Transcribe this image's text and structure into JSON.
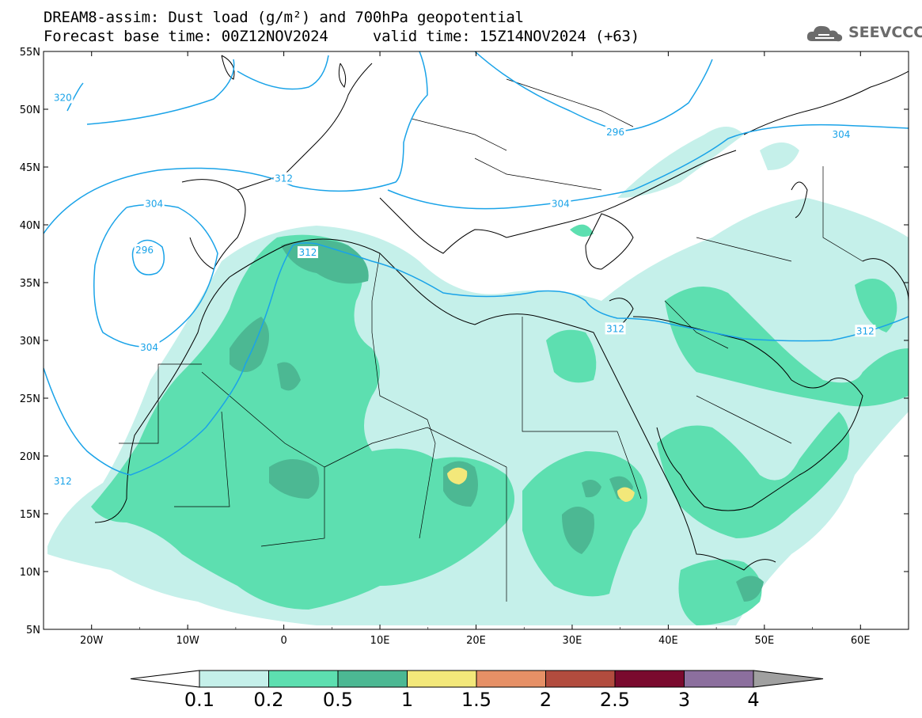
{
  "title_line1": "DREAM8-assim: Dust load (g/m²) and 700hPa geopotential",
  "title_line2": "Forecast base time: 00Z12NOV2024     valid time: 15Z14NOV2024 (+63)",
  "logo": {
    "text": "SEEVCCC",
    "icon": "cloud-icon",
    "color": "#6b6b6b"
  },
  "map": {
    "lon_range": [
      -25,
      65
    ],
    "lat_range": [
      5,
      55
    ],
    "lon_ticks": [
      {
        "value": -20,
        "label": "20W"
      },
      {
        "value": -10,
        "label": "10W"
      },
      {
        "value": 0,
        "label": "0"
      },
      {
        "value": 10,
        "label": "10E"
      },
      {
        "value": 20,
        "label": "20E"
      },
      {
        "value": 30,
        "label": "30E"
      },
      {
        "value": 40,
        "label": "40E"
      },
      {
        "value": 50,
        "label": "50E"
      },
      {
        "value": 60,
        "label": "60E"
      }
    ],
    "lat_ticks": [
      {
        "value": 55,
        "label": "55N"
      },
      {
        "value": 50,
        "label": "50N"
      },
      {
        "value": 45,
        "label": "45N"
      },
      {
        "value": 40,
        "label": "40N"
      },
      {
        "value": 35,
        "label": "35N"
      },
      {
        "value": 30,
        "label": "30N"
      },
      {
        "value": 25,
        "label": "25N"
      },
      {
        "value": 20,
        "label": "20N"
      },
      {
        "value": 15,
        "label": "15N"
      },
      {
        "value": 10,
        "label": "10N"
      },
      {
        "value": 5,
        "label": "5N"
      }
    ],
    "contour_color": "#1aa3e8",
    "contour_labels": [
      {
        "text": "320",
        "lon": -23,
        "lat": 51
      },
      {
        "text": "312",
        "lon": 0,
        "lat": 44
      },
      {
        "text": "296",
        "lon": 34.5,
        "lat": 48
      },
      {
        "text": "304",
        "lon": 58,
        "lat": 47.8
      },
      {
        "text": "304",
        "lon": -13.5,
        "lat": 41.8
      },
      {
        "text": "296",
        "lon": -14.5,
        "lat": 37.8
      },
      {
        "text": "312",
        "lon": 2.5,
        "lat": 37.6
      },
      {
        "text": "304",
        "lon": 28.8,
        "lat": 41.8
      },
      {
        "text": "304",
        "lon": -14,
        "lat": 29.4
      },
      {
        "text": "312",
        "lon": 34.5,
        "lat": 31
      },
      {
        "text": "312",
        "lon": 60.5,
        "lat": 30.8
      },
      {
        "text": "312",
        "lon": -23,
        "lat": 17.8
      }
    ]
  },
  "colorbar": {
    "levels": [
      "0.1",
      "0.2",
      "0.5",
      "1",
      "1.5",
      "2",
      "2.5",
      "3",
      "4"
    ],
    "colors": [
      "#ffffff",
      "#c5f0ea",
      "#5ddfb0",
      "#4cb893",
      "#f3e87a",
      "#e69066",
      "#b24c3e",
      "#7a0a2e",
      "#8c6f9e",
      "#a0a0a0"
    ]
  }
}
